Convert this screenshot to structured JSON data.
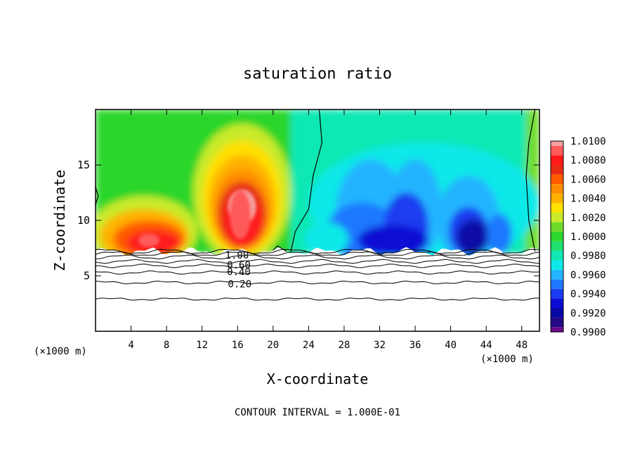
{
  "chart_data": {
    "type": "heatmap",
    "title": "saturation ratio",
    "xlabel": "X-coordinate",
    "ylabel": "Z-coordinate",
    "x_units": "(×1000 m)",
    "y_units": "(×1000 m)",
    "xlim": [
      0,
      50
    ],
    "ylim": [
      0,
      20
    ],
    "x_ticks": [
      4,
      8,
      12,
      16,
      20,
      24,
      28,
      32,
      36,
      40,
      44,
      48
    ],
    "y_ticks": [
      5,
      10,
      15
    ],
    "footer": "CONTOUR INTERVAL = 1.000E-01",
    "colorbar": {
      "labels": [
        "1.0100",
        "1.0080",
        "1.0060",
        "1.0040",
        "1.0020",
        "1.0000",
        "0.9980",
        "0.9960",
        "0.9940",
        "0.9920",
        "0.9900"
      ],
      "levels": [
        1.01,
        1.009,
        1.008,
        1.007,
        1.006,
        1.005,
        1.004,
        1.003,
        1.002,
        1.001,
        1.0,
        0.999,
        0.998,
        0.997,
        0.996,
        0.995,
        0.994,
        0.993,
        0.992,
        0.991,
        0.99
      ],
      "colors": [
        "#f4a0a0",
        "#ff5a5a",
        "#ff1a1a",
        "#e82b12",
        "#ff5a00",
        "#ff8c00",
        "#ffb200",
        "#ffe000",
        "#c9ea2a",
        "#6fdc2a",
        "#2cd62c",
        "#20e070",
        "#10e8b4",
        "#10e8e8",
        "#22b4ff",
        "#1e78ff",
        "#1a3cf0",
        "#0c0cd4",
        "#0808a6",
        "#250885",
        "#6a0a8c"
      ]
    },
    "contour_labels": [
      "1.00",
      "0.60",
      "0.40",
      "0.20"
    ],
    "contour_lines_z": [
      2.9,
      4.4,
      5.3,
      5.9,
      6.3,
      6.7,
      7.0,
      7.2
    ],
    "cloud_base_z": 7.2,
    "field_notes": "Supersaturated plumes near x=5 and x=16 (max ~1.009-1.010 at ~17-18 km); subsaturated region x=24-47 (min ~0.990 near z=8 km)."
  }
}
